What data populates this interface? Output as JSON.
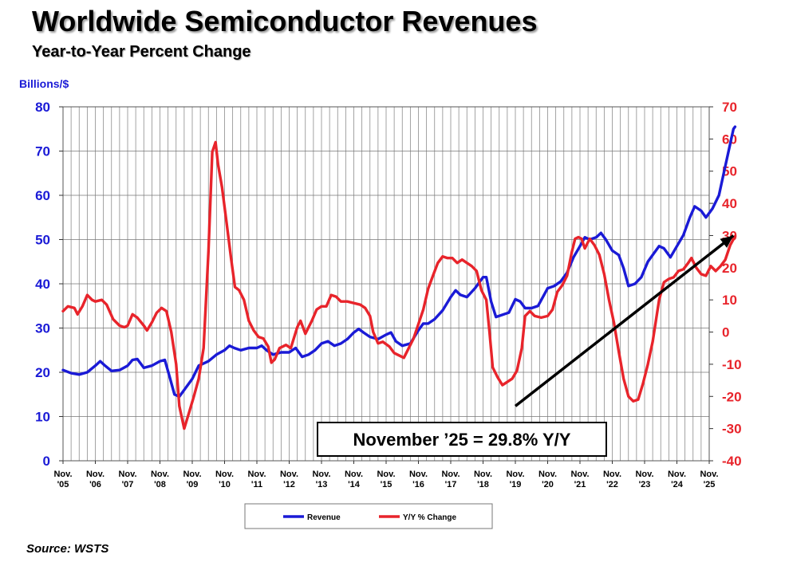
{
  "title": "Worldwide Semiconductor Revenues",
  "subtitle": "Year-to-Year Percent Change",
  "source": "Source: WSTS",
  "chart_data": {
    "type": "line",
    "left_axis": {
      "label": "Billions/$",
      "range": [
        0,
        80
      ],
      "ticks": [
        "0",
        "10",
        "20",
        "30",
        "40",
        "50",
        "60",
        "70",
        "80"
      ],
      "color": "#1a1ad6"
    },
    "right_axis": {
      "range": [
        -40,
        70
      ],
      "ticks": [
        "-40",
        "-30",
        "-20",
        "-10",
        "0",
        "10",
        "20",
        "30",
        "40",
        "50",
        "60",
        "70"
      ],
      "color": "#e8242b"
    },
    "x_ticks": [
      [
        "Nov.",
        "'05"
      ],
      [
        "Nov.",
        "'06"
      ],
      [
        "Nov.",
        "'07"
      ],
      [
        "Nov.",
        "'08"
      ],
      [
        "Nov.",
        "'09"
      ],
      [
        "Nov.",
        "'10"
      ],
      [
        "Nov.",
        "'11"
      ],
      [
        "Nov.",
        "'12"
      ],
      [
        "Nov.",
        "'13"
      ],
      [
        "Nov.",
        "'14"
      ],
      [
        "Nov.",
        "'15"
      ],
      [
        "Nov.",
        "'16"
      ],
      [
        "Nov.",
        "'17"
      ],
      [
        "Nov.",
        "'18"
      ],
      [
        "Nov.",
        "'19"
      ],
      [
        "Nov.",
        "'20"
      ],
      [
        "Nov.",
        "'21"
      ],
      [
        "Nov.",
        "'22"
      ],
      [
        "Nov.",
        "'23"
      ],
      [
        "Nov.",
        "'24"
      ],
      [
        "Nov.",
        "'25"
      ]
    ],
    "grid": true,
    "legend_position": "bottom-center",
    "series": [
      {
        "name": "Revenue",
        "axis": "left",
        "color": "#1a1ad6",
        "points": [
          [
            0,
            20.5
          ],
          [
            0.25,
            19.8
          ],
          [
            0.5,
            19.5
          ],
          [
            0.75,
            20.0
          ],
          [
            1.0,
            21.5
          ],
          [
            1.15,
            22.5
          ],
          [
            1.3,
            21.5
          ],
          [
            1.5,
            20.3
          ],
          [
            1.75,
            20.5
          ],
          [
            2.0,
            21.5
          ],
          [
            2.15,
            22.8
          ],
          [
            2.3,
            23.0
          ],
          [
            2.5,
            21.0
          ],
          [
            2.75,
            21.5
          ],
          [
            3.0,
            22.5
          ],
          [
            3.15,
            22.8
          ],
          [
            3.3,
            19.0
          ],
          [
            3.45,
            15.0
          ],
          [
            3.6,
            14.5
          ],
          [
            3.8,
            16.5
          ],
          [
            4.0,
            18.5
          ],
          [
            4.2,
            21.5
          ],
          [
            4.5,
            22.5
          ],
          [
            4.75,
            24.0
          ],
          [
            5.0,
            25.0
          ],
          [
            5.15,
            26.0
          ],
          [
            5.3,
            25.5
          ],
          [
            5.5,
            25.0
          ],
          [
            5.75,
            25.5
          ],
          [
            6.0,
            25.5
          ],
          [
            6.15,
            26.0
          ],
          [
            6.3,
            25.0
          ],
          [
            6.5,
            24.0
          ],
          [
            6.75,
            24.5
          ],
          [
            7.0,
            24.5
          ],
          [
            7.2,
            25.5
          ],
          [
            7.4,
            23.5
          ],
          [
            7.6,
            24.0
          ],
          [
            7.8,
            25.0
          ],
          [
            8.0,
            26.5
          ],
          [
            8.2,
            27.0
          ],
          [
            8.4,
            26.0
          ],
          [
            8.6,
            26.5
          ],
          [
            8.8,
            27.5
          ],
          [
            9.0,
            29.0
          ],
          [
            9.15,
            29.8
          ],
          [
            9.3,
            29.0
          ],
          [
            9.5,
            28.0
          ],
          [
            9.75,
            27.5
          ],
          [
            10.0,
            28.5
          ],
          [
            10.15,
            29.0
          ],
          [
            10.3,
            27.0
          ],
          [
            10.5,
            26.0
          ],
          [
            10.75,
            26.5
          ],
          [
            11.0,
            29.5
          ],
          [
            11.15,
            31.0
          ],
          [
            11.3,
            31.0
          ],
          [
            11.5,
            32.0
          ],
          [
            11.75,
            34.0
          ],
          [
            12.0,
            37.0
          ],
          [
            12.15,
            38.5
          ],
          [
            12.3,
            37.5
          ],
          [
            12.5,
            37.0
          ],
          [
            12.75,
            39.0
          ],
          [
            13.0,
            41.5
          ],
          [
            13.1,
            41.5
          ],
          [
            13.25,
            36.0
          ],
          [
            13.4,
            32.5
          ],
          [
            13.6,
            33.0
          ],
          [
            13.8,
            33.5
          ],
          [
            14.0,
            36.5
          ],
          [
            14.15,
            36.0
          ],
          [
            14.3,
            34.5
          ],
          [
            14.5,
            34.5
          ],
          [
            14.7,
            35.0
          ],
          [
            15.0,
            39.0
          ],
          [
            15.2,
            39.5
          ],
          [
            15.4,
            40.5
          ],
          [
            15.6,
            42.5
          ],
          [
            15.8,
            46.0
          ],
          [
            16.0,
            48.5
          ],
          [
            16.15,
            50.5
          ],
          [
            16.3,
            50.0
          ],
          [
            16.5,
            50.5
          ],
          [
            16.65,
            51.5
          ],
          [
            16.8,
            50.0
          ],
          [
            17.0,
            47.5
          ],
          [
            17.2,
            46.5
          ],
          [
            17.35,
            43.5
          ],
          [
            17.5,
            39.5
          ],
          [
            17.7,
            40.0
          ],
          [
            17.9,
            41.5
          ],
          [
            18.1,
            45.0
          ],
          [
            18.3,
            47.0
          ],
          [
            18.45,
            48.5
          ],
          [
            18.6,
            48.0
          ],
          [
            18.8,
            46.0
          ],
          [
            19.0,
            48.5
          ],
          [
            19.2,
            51.0
          ],
          [
            19.4,
            55.0
          ],
          [
            19.55,
            57.5
          ],
          [
            19.75,
            56.5
          ],
          [
            19.9,
            55.0
          ],
          [
            20.1,
            57.0
          ],
          [
            20.3,
            60.0
          ],
          [
            20.45,
            65.0
          ],
          [
            20.6,
            70.0
          ],
          [
            20.75,
            75.0
          ],
          [
            20.8,
            75.5
          ]
        ]
      },
      {
        "name": "Y/Y % Change",
        "axis": "right",
        "color": "#e8242b",
        "points": [
          [
            0,
            6.5
          ],
          [
            0.15,
            8.0
          ],
          [
            0.35,
            7.5
          ],
          [
            0.45,
            5.5
          ],
          [
            0.6,
            8.0
          ],
          [
            0.75,
            11.5
          ],
          [
            0.9,
            10.0
          ],
          [
            1.0,
            9.5
          ],
          [
            1.2,
            10.0
          ],
          [
            1.35,
            8.5
          ],
          [
            1.55,
            4.0
          ],
          [
            1.75,
            2.0
          ],
          [
            1.9,
            1.5
          ],
          [
            2.0,
            2.0
          ],
          [
            2.15,
            5.5
          ],
          [
            2.3,
            4.5
          ],
          [
            2.5,
            2.0
          ],
          [
            2.6,
            0.5
          ],
          [
            2.75,
            3.0
          ],
          [
            2.9,
            6.0
          ],
          [
            3.05,
            7.5
          ],
          [
            3.2,
            6.5
          ],
          [
            3.35,
            0.0
          ],
          [
            3.5,
            -10.0
          ],
          [
            3.6,
            -23.0
          ],
          [
            3.75,
            -30.0
          ],
          [
            3.9,
            -25.0
          ],
          [
            4.05,
            -20.0
          ],
          [
            4.2,
            -14.5
          ],
          [
            4.35,
            -5.0
          ],
          [
            4.5,
            25.0
          ],
          [
            4.62,
            56.0
          ],
          [
            4.72,
            59.0
          ],
          [
            4.8,
            52.0
          ],
          [
            4.92,
            45.0
          ],
          [
            5.05,
            35.0
          ],
          [
            5.2,
            23.0
          ],
          [
            5.32,
            14.0
          ],
          [
            5.45,
            13.0
          ],
          [
            5.6,
            10.0
          ],
          [
            5.75,
            3.5
          ],
          [
            5.9,
            0.5
          ],
          [
            6.05,
            -1.5
          ],
          [
            6.2,
            -2.0
          ],
          [
            6.35,
            -4.5
          ],
          [
            6.45,
            -9.5
          ],
          [
            6.55,
            -8.5
          ],
          [
            6.7,
            -5.0
          ],
          [
            6.9,
            -4.0
          ],
          [
            7.05,
            -5.0
          ],
          [
            7.25,
            1.5
          ],
          [
            7.35,
            3.5
          ],
          [
            7.5,
            -0.5
          ],
          [
            7.7,
            3.5
          ],
          [
            7.85,
            7.0
          ],
          [
            8.0,
            8.0
          ],
          [
            8.15,
            8.0
          ],
          [
            8.3,
            11.5
          ],
          [
            8.45,
            11.0
          ],
          [
            8.6,
            9.5
          ],
          [
            8.8,
            9.5
          ],
          [
            9.0,
            9.0
          ],
          [
            9.2,
            8.5
          ],
          [
            9.35,
            7.5
          ],
          [
            9.5,
            5.0
          ],
          [
            9.6,
            0.0
          ],
          [
            9.75,
            -3.5
          ],
          [
            9.9,
            -3.0
          ],
          [
            10.1,
            -4.5
          ],
          [
            10.25,
            -6.5
          ],
          [
            10.45,
            -7.5
          ],
          [
            10.55,
            -8.0
          ],
          [
            10.7,
            -5.0
          ],
          [
            10.85,
            -2.0
          ],
          [
            11.0,
            2.5
          ],
          [
            11.15,
            7.0
          ],
          [
            11.3,
            13.5
          ],
          [
            11.45,
            17.5
          ],
          [
            11.6,
            21.5
          ],
          [
            11.75,
            23.5
          ],
          [
            11.9,
            23.0
          ],
          [
            12.05,
            23.0
          ],
          [
            12.2,
            21.5
          ],
          [
            12.35,
            22.5
          ],
          [
            12.5,
            21.5
          ],
          [
            12.65,
            20.5
          ],
          [
            12.8,
            19.0
          ],
          [
            12.95,
            13.0
          ],
          [
            13.1,
            10.0
          ],
          [
            13.2,
            0.0
          ],
          [
            13.3,
            -11.0
          ],
          [
            13.45,
            -14.0
          ],
          [
            13.6,
            -16.5
          ],
          [
            13.75,
            -15.5
          ],
          [
            13.9,
            -14.5
          ],
          [
            14.05,
            -12.0
          ],
          [
            14.2,
            -5.0
          ],
          [
            14.3,
            5.0
          ],
          [
            14.45,
            6.5
          ],
          [
            14.6,
            5.0
          ],
          [
            14.8,
            4.5
          ],
          [
            15.0,
            5.0
          ],
          [
            15.15,
            7.0
          ],
          [
            15.3,
            12.5
          ],
          [
            15.45,
            14.5
          ],
          [
            15.6,
            17.5
          ],
          [
            15.75,
            25.0
          ],
          [
            15.85,
            29.0
          ],
          [
            15.95,
            29.5
          ],
          [
            16.05,
            29.0
          ],
          [
            16.15,
            26.0
          ],
          [
            16.3,
            29.0
          ],
          [
            16.45,
            27.0
          ],
          [
            16.6,
            24.0
          ],
          [
            16.75,
            18.0
          ],
          [
            16.9,
            10.0
          ],
          [
            17.05,
            3.0
          ],
          [
            17.2,
            -6.0
          ],
          [
            17.35,
            -14.5
          ],
          [
            17.5,
            -20.0
          ],
          [
            17.65,
            -21.5
          ],
          [
            17.8,
            -21.0
          ],
          [
            17.95,
            -16.0
          ],
          [
            18.1,
            -10.0
          ],
          [
            18.25,
            -3.0
          ],
          [
            18.45,
            10.0
          ],
          [
            18.6,
            15.5
          ],
          [
            18.75,
            16.5
          ],
          [
            18.9,
            17.0
          ],
          [
            19.05,
            19.0
          ],
          [
            19.2,
            19.5
          ],
          [
            19.35,
            21.5
          ],
          [
            19.45,
            23.0
          ],
          [
            19.6,
            20.0
          ],
          [
            19.75,
            18.0
          ],
          [
            19.9,
            17.5
          ],
          [
            20.05,
            20.5
          ],
          [
            20.2,
            19.0
          ],
          [
            20.35,
            20.5
          ],
          [
            20.5,
            22.5
          ],
          [
            20.65,
            27.0
          ],
          [
            20.8,
            29.8
          ]
        ]
      }
    ],
    "annotation": {
      "text": "November ’25 = 29.8% Y/Y",
      "arrow_from": [
        14.0,
        -23.0
      ],
      "arrow_to": [
        20.75,
        30.0
      ]
    }
  }
}
